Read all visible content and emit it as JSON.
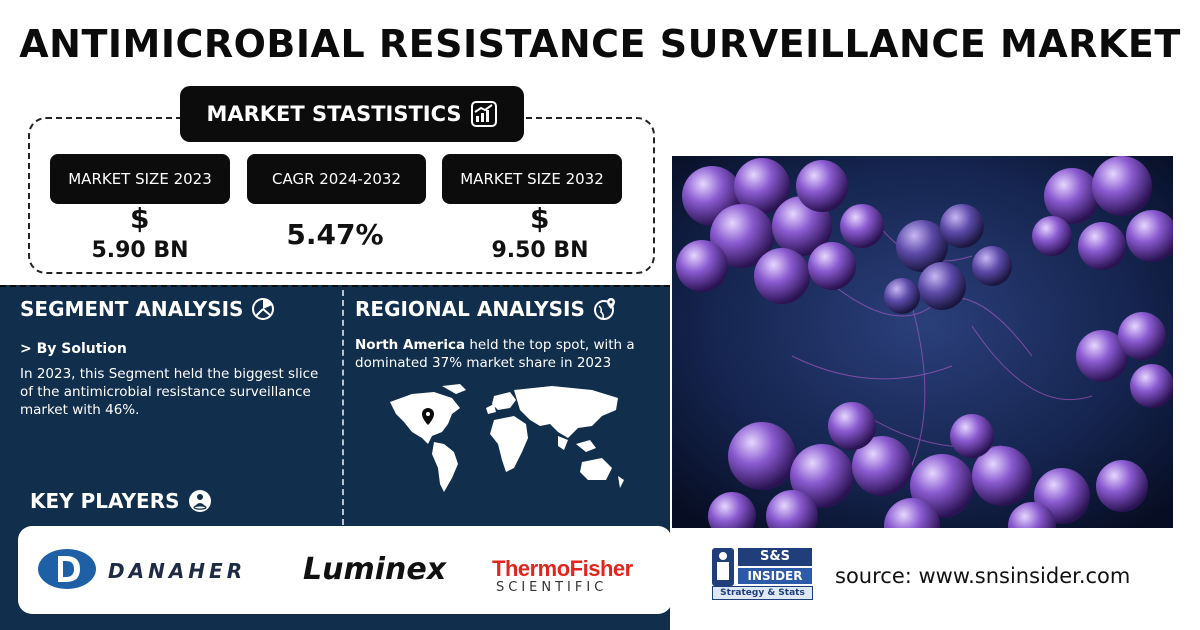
{
  "title": "ANTIMICROBIAL RESISTANCE SURVEILLANCE MARKET",
  "stats": {
    "heading": "MARKET STASTISTICS",
    "cards": [
      {
        "label": "MARKET SIZE 2023",
        "currency": "$",
        "value": "5.90 BN"
      },
      {
        "label": "CAGR 2024-2032",
        "currency": "",
        "value": "5.47%"
      },
      {
        "label": "MARKET SIZE 2032",
        "currency": "$",
        "value": "9.50 BN"
      }
    ]
  },
  "segment": {
    "heading": "SEGMENT ANALYSIS",
    "sub": "> By Solution",
    "text": "In 2023, this Segment held the biggest slice of the antimicrobial resistance surveillance market with 46%."
  },
  "regional": {
    "heading": "REGIONAL ANALYSIS",
    "region": "North America",
    "text": " held the top spot, with a dominated 37% market share in 2023"
  },
  "key_players": {
    "heading": "KEY PLAYERS",
    "logos": [
      "DANAHER",
      "Luminex",
      "ThermoFisher",
      "SCIENTIFIC"
    ]
  },
  "brand": {
    "top": "S&S",
    "mid": "INSIDER",
    "bottom": "Strategy & Stats"
  },
  "source": "source: www.snsinsider.com",
  "colors": {
    "navy": "#112e4d",
    "dark": "#0c0c0c",
    "thermo_red": "#e2261d",
    "danaher_blue": "#1f5fa6"
  }
}
